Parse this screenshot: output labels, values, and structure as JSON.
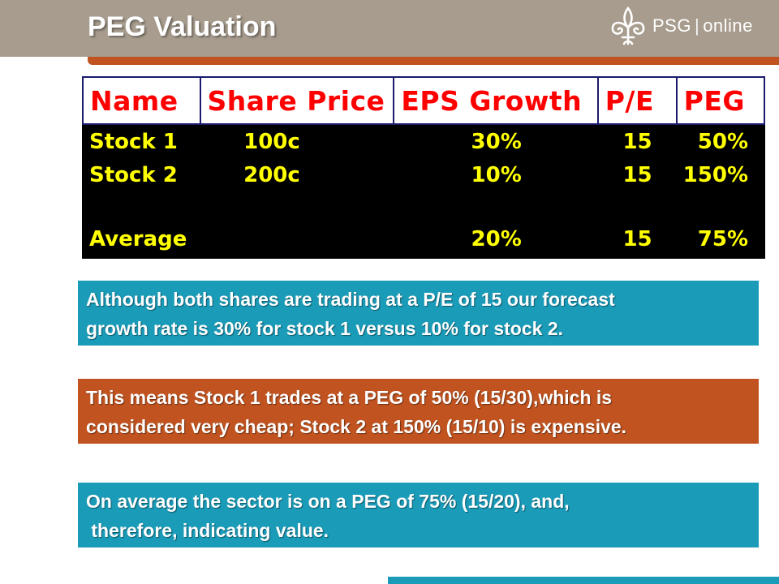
{
  "header": {
    "title": "PEG Valuation",
    "logo_brand": "PSG",
    "logo_separator": "|",
    "logo_suffix": "online"
  },
  "table": {
    "columns": [
      "Name",
      "Share Price",
      "EPS Growth",
      "P/E",
      "PEG"
    ],
    "rows": [
      {
        "name": "Stock 1",
        "price": "100c",
        "eps": "30%",
        "pe": "15",
        "peg": "50%"
      },
      {
        "name": "Stock 2",
        "price": "200c",
        "eps": "10%",
        "pe": "15",
        "peg": "150%"
      },
      {
        "name": "Average",
        "price": "",
        "eps": "20%",
        "pe": "15",
        "peg": "75%"
      }
    ]
  },
  "boxes": [
    {
      "line1": "Although both shares are trading at a P/E of 15 our forecast",
      "line2": "growth rate is 30% for stock 1 versus 10% for stock 2."
    },
    {
      "line1": "This means Stock 1 trades at a PEG of 50% (15/30),which is",
      "line2": "considered very cheap; Stock 2 at 150% (15/10) is expensive."
    },
    {
      "line1": "On average the sector is on a PEG of 75% (15/20), and,",
      "line2": " therefore, indicating value."
    }
  ],
  "colors": {
    "header_bar": "#a79c8e",
    "accent_orange": "#c0531f",
    "accent_blue": "#1a9bb8",
    "table_header_text": "#ff0000",
    "table_body_text": "#ffff00",
    "table_body_bg": "#000000"
  },
  "icons": {
    "logo": "fleur-de-lis-icon"
  }
}
